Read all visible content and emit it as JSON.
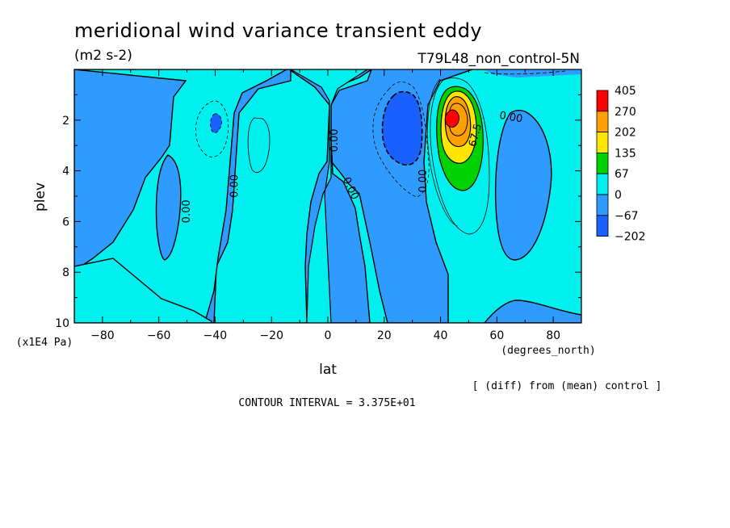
{
  "header": {
    "title": "meridional wind variance transient eddy",
    "units": "(m2 s-2)",
    "dataset": "T79L48_non_control-5N"
  },
  "footer": {
    "diff_note": "[ (diff) from (mean) control ]",
    "contour_interval": "CONTOUR INTERVAL = 3.375E+01"
  },
  "chart_data": {
    "type": "contour",
    "xlabel": "lat",
    "xunits": "(degrees_north)",
    "ylabel": "plev",
    "yunits": "(x1E4 Pa)",
    "xlim": [
      -90,
      90
    ],
    "ylim": [
      10,
      0
    ],
    "xticks": [
      -80,
      -60,
      -40,
      -20,
      0,
      20,
      40,
      60,
      80
    ],
    "yticks": [
      2,
      4,
      6,
      8,
      10
    ],
    "contour_interval": 33.75,
    "colorbar": {
      "levels": [
        "405",
        "270",
        "202",
        "135",
        "67",
        "0",
        "-67",
        "-202"
      ],
      "colors": [
        "#ff0000",
        "#ffa000",
        "#ffe600",
        "#00d200",
        "#00f0f0",
        "#2f9bff",
        "#1960ff"
      ]
    },
    "contour_labels": [
      {
        "text": "0.00",
        "lat": -50,
        "plev": 5.6,
        "rotation": -90
      },
      {
        "text": "0.00",
        "lat": -33,
        "plev": 4.6,
        "rotation": -90
      },
      {
        "text": "0.00",
        "lat": 2.5,
        "plev": 2.8,
        "rotation": -90
      },
      {
        "text": "0.00",
        "lat": 8,
        "plev": 4.7,
        "rotation": 65
      },
      {
        "text": "0.00",
        "lat": 34,
        "plev": 4.4,
        "rotation": -90
      },
      {
        "text": "67.5",
        "lat": 52.5,
        "plev": 2.6,
        "rotation": -75
      },
      {
        "text": "0.00",
        "lat": 65,
        "plev": 1.9,
        "rotation": 10
      }
    ],
    "features": [
      {
        "type": "max",
        "lat": 43,
        "plev": 2.1,
        "value": 405
      },
      {
        "type": "min",
        "lat": 26,
        "plev": 2.6,
        "value": -202
      },
      {
        "type": "min",
        "lat": -39,
        "plev": 2.2,
        "value": -202
      }
    ]
  }
}
